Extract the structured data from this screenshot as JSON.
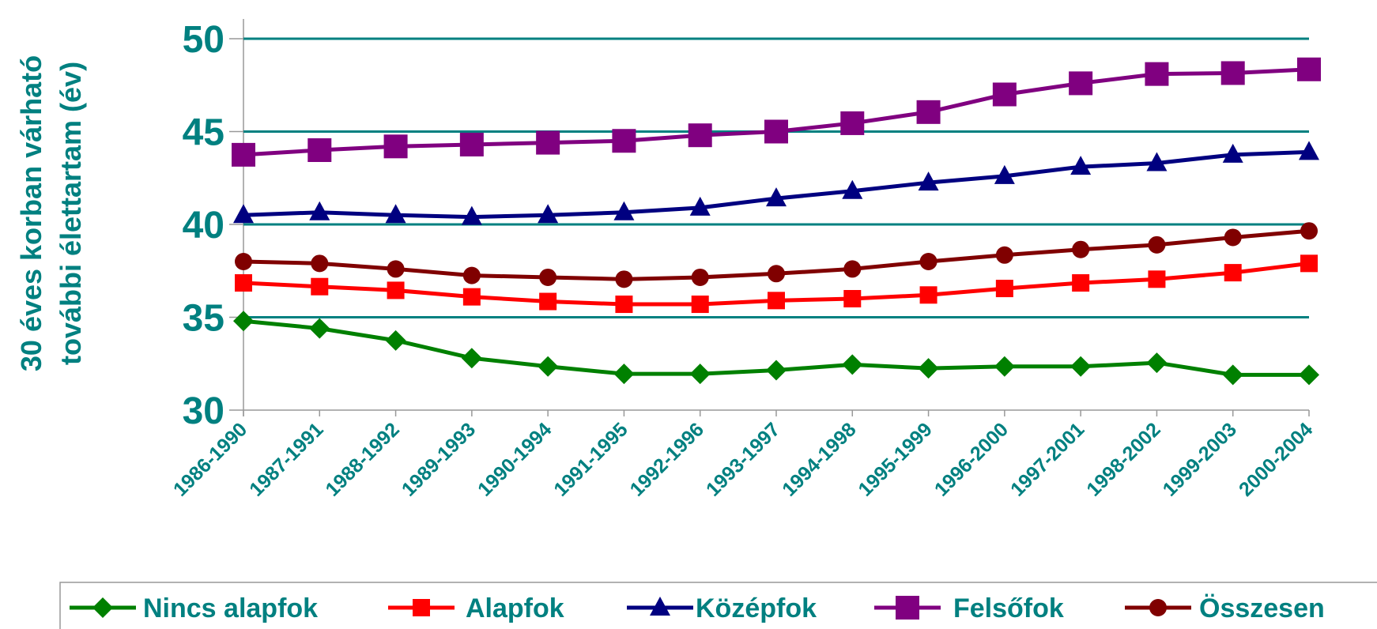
{
  "chart_data": {
    "type": "line",
    "ylabel": [
      "30 éves korban várható",
      "további élettartam (év)"
    ],
    "categories": [
      "1986-1990",
      "1987-1991",
      "1988-1992",
      "1989-1993",
      "1990-1994",
      "1991-1995",
      "1992-1996",
      "1993-1997",
      "1994-1998",
      "1995-1999",
      "1996-2000",
      "1997-2001",
      "1998-2002",
      "1999-2003",
      "2000-2004"
    ],
    "series": [
      {
        "name": "Nincs alapfok",
        "color": "#008000",
        "marker": "diamond",
        "values": [
          34.8,
          34.4,
          33.75,
          32.8,
          32.35,
          31.95,
          31.95,
          32.15,
          32.45,
          32.25,
          32.35,
          32.35,
          32.55,
          31.9,
          31.9
        ]
      },
      {
        "name": "Alapfok",
        "color": "#ff0000",
        "marker": "square",
        "values": [
          36.85,
          36.65,
          36.45,
          36.1,
          35.85,
          35.7,
          35.7,
          35.9,
          36.0,
          36.2,
          36.55,
          36.85,
          37.05,
          37.4,
          37.9
        ]
      },
      {
        "name": "Középfok",
        "color": "#000080",
        "marker": "triangle",
        "values": [
          40.5,
          40.65,
          40.5,
          40.4,
          40.5,
          40.65,
          40.9,
          41.4,
          41.8,
          42.25,
          42.6,
          43.1,
          43.3,
          43.75,
          43.9
        ]
      },
      {
        "name": "Felsőfok",
        "color": "#800080",
        "marker": "bigsquare",
        "values": [
          43.75,
          44.0,
          44.2,
          44.3,
          44.4,
          44.5,
          44.8,
          45.0,
          45.45,
          46.05,
          47.0,
          47.6,
          48.1,
          48.15,
          48.35
        ]
      },
      {
        "name": "Összesen",
        "color": "#800000",
        "marker": "circle",
        "values": [
          38.0,
          37.9,
          37.6,
          37.25,
          37.15,
          37.05,
          37.15,
          37.35,
          37.6,
          38.0,
          38.35,
          38.65,
          38.9,
          39.3,
          39.65
        ]
      }
    ],
    "ylim": [
      30,
      50
    ],
    "yticks": [
      30,
      35,
      40,
      45,
      50
    ],
    "grid": true,
    "legend": "bottom"
  }
}
